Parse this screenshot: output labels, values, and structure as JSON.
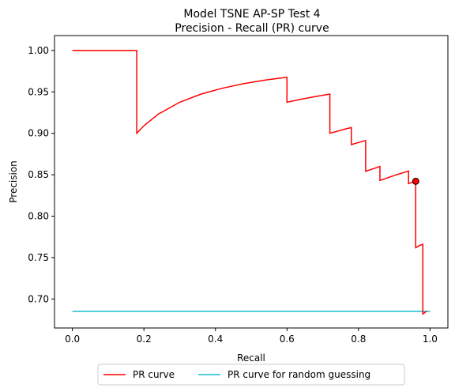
{
  "chart_data": {
    "type": "line",
    "title": "Model TSNE AP-SP Test 4",
    "subtitle": "Precision - Recall (PR) curve",
    "xlabel": "Recall",
    "ylabel": "Precision",
    "xlim": [
      -0.05,
      1.05
    ],
    "ylim": [
      0.665,
      1.018
    ],
    "x_ticks": [
      "0.0",
      "0.2",
      "0.4",
      "0.6",
      "0.8",
      "1.0"
    ],
    "y_ticks": [
      "0.70",
      "0.75",
      "0.80",
      "0.85",
      "0.90",
      "0.95",
      "1.00"
    ],
    "grid": false,
    "legend_position": "bottom-center",
    "series": [
      {
        "name": "PR curve",
        "color": "#ff0000",
        "x": [
          0.0,
          0.18,
          0.18,
          0.2,
          0.24,
          0.3,
          0.36,
          0.42,
          0.48,
          0.54,
          0.6,
          0.6,
          0.64,
          0.68,
          0.72,
          0.72,
          0.76,
          0.78,
          0.78,
          0.8,
          0.82,
          0.82,
          0.84,
          0.86,
          0.86,
          0.9,
          0.94,
          0.94,
          0.95,
          0.96,
          0.96,
          0.97,
          0.98,
          0.98,
          0.99
        ],
        "y": [
          1.0,
          1.0,
          0.9,
          0.9091,
          0.9231,
          0.9375,
          0.9474,
          0.9545,
          0.96,
          0.9643,
          0.9677,
          0.9375,
          0.9412,
          0.9444,
          0.9474,
          0.9,
          0.9048,
          0.907,
          0.8864,
          0.8889,
          0.8913,
          0.8542,
          0.8571,
          0.86,
          0.8431,
          0.8491,
          0.8545,
          0.8393,
          0.8407,
          0.8421,
          0.7619,
          0.7645,
          0.766,
          0.6818,
          0.6852
        ]
      },
      {
        "name": "PR curve for random guessing",
        "color": "#17becf",
        "x": [
          0.0,
          1.0
        ],
        "y": [
          0.685,
          0.685
        ]
      }
    ],
    "marker": {
      "x": 0.96,
      "y": 0.8421,
      "color": "#ff0000"
    }
  }
}
